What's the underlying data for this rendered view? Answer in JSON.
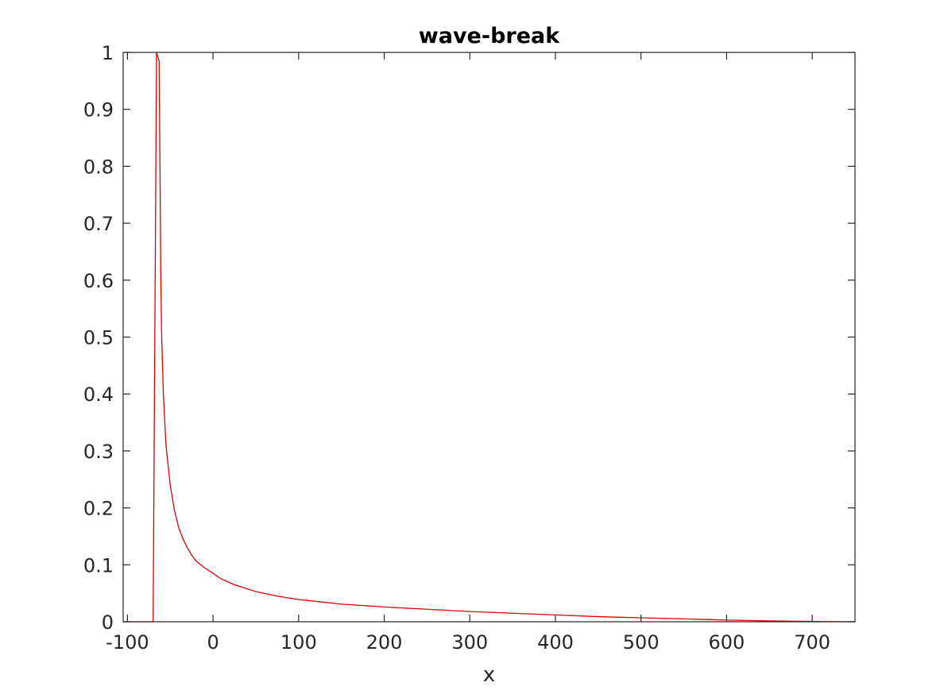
{
  "chart_data": {
    "type": "line",
    "title": "wave-break",
    "xlabel": "x",
    "ylabel": "",
    "xlim": [
      -105,
      750
    ],
    "ylim": [
      0,
      1
    ],
    "grid": false,
    "box": true,
    "xticks": [
      -100,
      0,
      100,
      200,
      300,
      400,
      500,
      600,
      700
    ],
    "xtick_labels": [
      "-100",
      "0",
      "100",
      "200",
      "300",
      "400",
      "500",
      "600",
      "700"
    ],
    "yticks": [
      0,
      0.1,
      0.2,
      0.3,
      0.4,
      0.5,
      0.6,
      0.7,
      0.8,
      0.9,
      1
    ],
    "ytick_labels": [
      "0",
      "0.1",
      "0.2",
      "0.3",
      "0.4",
      "0.5",
      "0.6",
      "0.7",
      "0.8",
      "0.9",
      "1"
    ],
    "series": [
      {
        "color": "#e00000",
        "x": [
          -105,
          -70,
          -70,
          -66,
          -63,
          -62,
          -61,
          -60,
          -58,
          -55,
          -50,
          -45,
          -40,
          -35,
          -30,
          -25,
          -20,
          -10,
          0,
          10,
          25,
          50,
          75,
          100,
          150,
          200,
          250,
          300,
          350,
          400,
          450,
          500,
          550,
          600,
          650,
          700,
          750
        ],
        "y": [
          0,
          0,
          0,
          1,
          0.985,
          0.8,
          0.6,
          0.5,
          0.4,
          0.31,
          0.24,
          0.195,
          0.165,
          0.145,
          0.13,
          0.117,
          0.107,
          0.095,
          0.085,
          0.075,
          0.065,
          0.053,
          0.045,
          0.039,
          0.031,
          0.026,
          0.022,
          0.018,
          0.015,
          0.012,
          0.009,
          0.007,
          0.005,
          0.003,
          0.0015,
          0.0005,
          0
        ]
      }
    ]
  }
}
